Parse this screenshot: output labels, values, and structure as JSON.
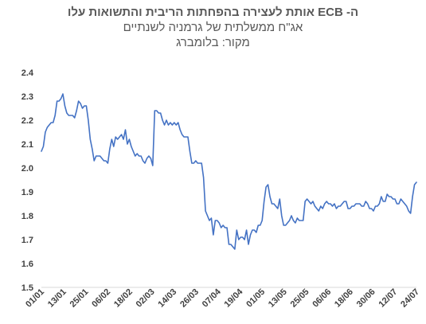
{
  "chart_data": {
    "type": "line",
    "title": "ה- ECB אותת לעצירה בהפחתות הריבית והתשואות עלו",
    "subtitle": "אג\"ח ממשלתית של גרמניה לשנתיים",
    "source": "מקור: בלומברג",
    "xlabel": "",
    "ylabel": "",
    "ylim": [
      1.5,
      2.4
    ],
    "yticks": [
      "2.4",
      "2.3",
      "2.2",
      "2.1",
      "2.0",
      "1.9",
      "1.8",
      "1.7",
      "1.6",
      "1.5"
    ],
    "xtick_labels": [
      "01/01",
      "13/01",
      "25/01",
      "06/02",
      "18/02",
      "02/03",
      "14/03",
      "26/03",
      "07/04",
      "19/04",
      "01/05",
      "13/05",
      "25/05",
      "06/06",
      "18/06",
      "30/06",
      "12/07",
      "24/07"
    ],
    "grid": false,
    "legend": "none",
    "line_color": "#4472C4",
    "series": [
      {
        "values": [
          2.07,
          2.09,
          2.15,
          2.17,
          2.18,
          2.19,
          2.19,
          2.22,
          2.28,
          2.28,
          2.29,
          2.31,
          2.26,
          2.23,
          2.22,
          2.22,
          2.22,
          2.21,
          2.24,
          2.28,
          2.27,
          2.25,
          2.26,
          2.26,
          2.2,
          2.12,
          2.08,
          2.03,
          2.05,
          2.05,
          2.05,
          2.04,
          2.03,
          2.03,
          2.02,
          2.08,
          2.12,
          2.09,
          2.13,
          2.12,
          2.13,
          2.14,
          2.12,
          2.16,
          2.1,
          2.12,
          2.09,
          2.07,
          2.05,
          2.06,
          2.05,
          2.05,
          2.03,
          2.02,
          2.04,
          2.05,
          2.04,
          2.01,
          2.24,
          2.24,
          2.23,
          2.23,
          2.2,
          2.18,
          2.2,
          2.18,
          2.19,
          2.18,
          2.19,
          2.18,
          2.19,
          2.16,
          2.14,
          2.13,
          2.13,
          2.13,
          2.07,
          2.02,
          2.02,
          2.03,
          2.02,
          2.02,
          2.02,
          1.96,
          1.82,
          1.8,
          1.78,
          1.79,
          1.72,
          1.78,
          1.78,
          1.77,
          1.75,
          1.76,
          1.75,
          1.75,
          1.68,
          1.68,
          1.67,
          1.66,
          1.74,
          1.7,
          1.71,
          1.71,
          1.7,
          1.74,
          1.68,
          1.72,
          1.74,
          1.74,
          1.73,
          1.76,
          1.76,
          1.78,
          1.86,
          1.92,
          1.93,
          1.88,
          1.85,
          1.85,
          1.84,
          1.83,
          1.87,
          1.8,
          1.76,
          1.76,
          1.77,
          1.78,
          1.8,
          1.78,
          1.77,
          1.79,
          1.78,
          1.78,
          1.78,
          1.86,
          1.87,
          1.86,
          1.85,
          1.86,
          1.84,
          1.83,
          1.82,
          1.84,
          1.83,
          1.85,
          1.86,
          1.85,
          1.85,
          1.84,
          1.85,
          1.83,
          1.84,
          1.84,
          1.85,
          1.86,
          1.86,
          1.83,
          1.83,
          1.84,
          1.84,
          1.85,
          1.85,
          1.85,
          1.84,
          1.84,
          1.86,
          1.85,
          1.83,
          1.83,
          1.82,
          1.84,
          1.84,
          1.85,
          1.88,
          1.86,
          1.86,
          1.89,
          1.88,
          1.88,
          1.87,
          1.87,
          1.85,
          1.85,
          1.87,
          1.86,
          1.85,
          1.84,
          1.82,
          1.81,
          1.88,
          1.93,
          1.94
        ]
      }
    ]
  }
}
